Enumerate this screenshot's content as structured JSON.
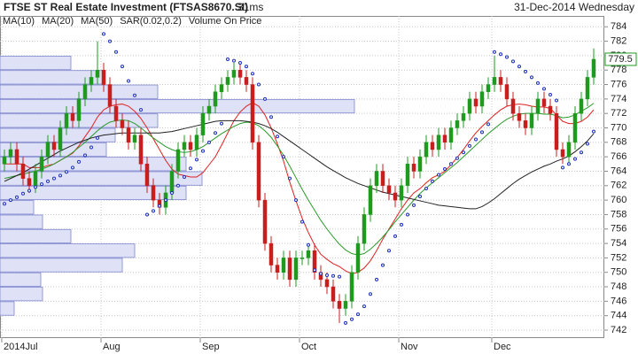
{
  "chart_data": {
    "type": "candlestick",
    "title": "FTSE ST Real Estate Investment (FTSAS8670.SI)",
    "interval": "31ms",
    "date_label": "31-Dec-2014 Wednesday",
    "up_color": "#1f9a1f",
    "down_color": "#c81e1e",
    "grid": true,
    "categories": [
      "2014Jul",
      null,
      null,
      null,
      null,
      null,
      null,
      null,
      null,
      null,
      null,
      null,
      null,
      null,
      null,
      null,
      "Aug",
      null,
      null,
      null,
      null,
      null,
      null,
      null,
      null,
      null,
      null,
      null,
      null,
      null,
      null,
      null,
      "Sep",
      null,
      null,
      null,
      null,
      null,
      null,
      null,
      null,
      null,
      null,
      null,
      null,
      null,
      null,
      null,
      "Oct",
      null,
      null,
      null,
      null,
      null,
      null,
      null,
      null,
      null,
      null,
      null,
      null,
      null,
      null,
      null,
      "Nov",
      null,
      null,
      null,
      null,
      null,
      null,
      null,
      null,
      null,
      null,
      null,
      null,
      null,
      null,
      "Dec",
      null,
      null,
      null,
      null,
      null,
      null,
      null,
      null,
      null,
      null,
      null,
      null,
      null,
      null,
      null,
      null
    ],
    "open": [
      765,
      766,
      767,
      765,
      763,
      762,
      764,
      766,
      768,
      767,
      770,
      772,
      771,
      774,
      776,
      777,
      778,
      776,
      773,
      771,
      770,
      768,
      769,
      765,
      762,
      760,
      759,
      761,
      764,
      767,
      768,
      767,
      769,
      772,
      773,
      775,
      776,
      777,
      778,
      777,
      776,
      768,
      760,
      754,
      751,
      750,
      752,
      749,
      752,
      752,
      753,
      750,
      749,
      748,
      746,
      745,
      746,
      750,
      754,
      758,
      762,
      764,
      762,
      761,
      760,
      762,
      765,
      764,
      766,
      768,
      767,
      769,
      768,
      770,
      771,
      772,
      774,
      773,
      775,
      776,
      777,
      776,
      774,
      772,
      771,
      770,
      772,
      774,
      773,
      772,
      767,
      766,
      768,
      772,
      774,
      777
    ],
    "high": [
      767,
      768,
      768,
      766,
      764,
      765,
      767,
      769,
      769,
      771,
      773,
      773,
      775,
      777,
      778,
      782,
      779,
      777,
      774,
      772,
      771,
      770,
      770,
      766,
      763,
      761,
      762,
      765,
      768,
      769,
      769,
      770,
      773,
      774,
      776,
      777,
      778,
      779,
      779,
      778,
      777,
      769,
      761,
      755,
      752,
      753,
      753,
      753,
      753,
      754,
      754,
      751,
      750,
      749,
      747,
      747,
      751,
      755,
      759,
      763,
      765,
      765,
      763,
      762,
      763,
      766,
      766,
      767,
      769,
      769,
      770,
      770,
      771,
      772,
      773,
      775,
      775,
      776,
      777,
      780,
      778,
      777,
      775,
      773,
      772,
      773,
      775,
      775,
      774,
      773,
      768,
      769,
      773,
      775,
      778,
      781
    ],
    "low": [
      764,
      765,
      764,
      762,
      761,
      761,
      763,
      765,
      766,
      766,
      769,
      770,
      770,
      773,
      775,
      776,
      775,
      772,
      770,
      769,
      767,
      767,
      764,
      761,
      759,
      758,
      758,
      760,
      763,
      766,
      766,
      766,
      768,
      771,
      772,
      774,
      775,
      776,
      776,
      775,
      767,
      759,
      753,
      750,
      749,
      749,
      748,
      748,
      751,
      751,
      749,
      748,
      747,
      745,
      743,
      744,
      745,
      749,
      753,
      757,
      761,
      761,
      760,
      759,
      759,
      761,
      763,
      763,
      765,
      766,
      766,
      767,
      767,
      769,
      770,
      771,
      772,
      772,
      774,
      775,
      775,
      773,
      771,
      770,
      769,
      769,
      771,
      772,
      771,
      766,
      765,
      765,
      767,
      771,
      773,
      776
    ],
    "close": [
      766,
      767,
      765,
      763,
      762,
      764,
      766,
      768,
      767,
      770,
      772,
      771,
      774,
      776,
      777,
      778,
      776,
      773,
      771,
      770,
      768,
      769,
      765,
      762,
      760,
      759,
      761,
      764,
      767,
      768,
      767,
      769,
      772,
      773,
      775,
      776,
      777,
      778,
      777,
      776,
      768,
      760,
      754,
      751,
      750,
      752,
      749,
      752,
      752,
      753,
      750,
      749,
      748,
      746,
      745,
      746,
      750,
      754,
      758,
      762,
      764,
      762,
      761,
      760,
      762,
      765,
      764,
      766,
      768,
      767,
      769,
      768,
      770,
      771,
      772,
      774,
      773,
      775,
      776,
      777,
      776,
      774,
      772,
      771,
      770,
      772,
      774,
      773,
      772,
      767,
      766,
      768,
      772,
      774,
      777,
      779.5
    ],
    "series": [
      {
        "name": "MA(10)",
        "color": "#e02020",
        "values": [
          765,
          765,
          765,
          765,
          764.5,
          764.5,
          764.5,
          764.8,
          765,
          765.5,
          766,
          766.5,
          767.5,
          768.8,
          770,
          771.5,
          772.5,
          773,
          773.2,
          773.3,
          773,
          772.3,
          771.3,
          770,
          768.5,
          767,
          765.5,
          764.3,
          763.6,
          763.4,
          763.2,
          763.2,
          763.8,
          764.9,
          766,
          767.6,
          769.3,
          771,
          772.2,
          773,
          773.5,
          773,
          771.8,
          770,
          767.8,
          765.4,
          762.5,
          759.9,
          757.5,
          755.5,
          753.8,
          752.5,
          751.8,
          751.2,
          750.8,
          750.2,
          749.8,
          750,
          750.6,
          751.6,
          753,
          754.6,
          756,
          757.4,
          758.8,
          760,
          761,
          761.6,
          762.4,
          763.1,
          763.5,
          764,
          764.9,
          765.9,
          767,
          768.2,
          769.3,
          770.2,
          771,
          771.8,
          772.5,
          773,
          773.2,
          773.3,
          773.2,
          773,
          772.9,
          772.9,
          772.7,
          771.8,
          770.9,
          770.6,
          770.6,
          770.9,
          771.5,
          772.5
        ]
      },
      {
        "name": "MA(20)",
        "color": "#2a9a2a",
        "values": [
          763,
          763.2,
          763.4,
          763.6,
          763.8,
          764,
          764.3,
          764.6,
          765,
          765.5,
          766,
          766.6,
          767.3,
          768,
          768.8,
          769.6,
          770.3,
          770.8,
          771,
          771.1,
          771,
          770.6,
          770,
          769.3,
          768.6,
          768,
          767.4,
          767,
          766.7,
          766.6,
          766.7,
          767,
          767.4,
          768,
          768.6,
          769.2,
          769.7,
          770.2,
          770.6,
          770.8,
          770.7,
          770.3,
          769.6,
          768.7,
          767.5,
          766.2,
          764.7,
          763.1,
          761.5,
          760,
          758.6,
          757.2,
          756,
          754.9,
          753.9,
          753.1,
          752.6,
          752.4,
          752.6,
          753.2,
          754,
          754.9,
          755.9,
          757,
          758,
          759,
          760,
          760.9,
          761.7,
          762.4,
          763.1,
          763.8,
          764.5,
          765.2,
          766,
          766.8,
          767.6,
          768.4,
          769.2,
          769.9,
          770.6,
          771.2,
          771.6,
          771.9,
          772,
          772,
          772,
          771.9,
          771.9,
          771.7,
          771.4,
          771.5,
          771.8,
          772.3,
          772.8,
          773.4
        ]
      },
      {
        "name": "MA(50)",
        "color": "#222222",
        "values": [
          762.6,
          763,
          763.4,
          763.8,
          764.3,
          764.8,
          765.3,
          765.8,
          766.3,
          766.8,
          767.2,
          767.6,
          768,
          768.3,
          768.6,
          768.8,
          769,
          769.1,
          769.2,
          769.3,
          769.3,
          769.3,
          769.3,
          769.3,
          769.3,
          769.3,
          769.4,
          769.5,
          769.7,
          769.9,
          770.1,
          770.3,
          770.5,
          770.7,
          770.9,
          771,
          771,
          771,
          771,
          770.9,
          770.8,
          770.6,
          770.3,
          769.9,
          769.4,
          768.8,
          768.2,
          767.6,
          767,
          766.4,
          765.8,
          765.2,
          764.6,
          764.1,
          763.6,
          763.1,
          762.7,
          762.3,
          762,
          761.7,
          761.4,
          761.1,
          760.9,
          760.7,
          760.5,
          760.3,
          760.1,
          759.9,
          759.7,
          759.5,
          759.3,
          759.2,
          759.1,
          759,
          758.9,
          758.8,
          758.8,
          759.1,
          759.6,
          760.2,
          760.9,
          761.6,
          762.3,
          762.9,
          763.4,
          763.9,
          764.3,
          764.7,
          765,
          765.4,
          765.7,
          766.1,
          766.7,
          767.4,
          768.2,
          769.2
        ]
      }
    ],
    "sar": {
      "name": "SAR(0.02,0.2)",
      "color": "#1c2fb8",
      "values": [
        759.5,
        760,
        760.4,
        760.9,
        761.3,
        761.8,
        762.2,
        762.6,
        763,
        763.4,
        763.9,
        764.5,
        765.3,
        766.2,
        767.3,
        768.6,
        783,
        782,
        780.5,
        778.5,
        776.5,
        774.5,
        772.5,
        758,
        758.5,
        759.2,
        760,
        761,
        762,
        763.2,
        764.4,
        765.6,
        766.8,
        768,
        769.3,
        770.6,
        779.5,
        779.3,
        779,
        778.5,
        777.5,
        776,
        774,
        771.5,
        768.8,
        766,
        763,
        760,
        757,
        753.8,
        750.3,
        749.8,
        749.6,
        749.5,
        749.4,
        743,
        743.5,
        744.2,
        745.3,
        747,
        749,
        751,
        753,
        755,
        756.6,
        758,
        759.3,
        760.5,
        761.6,
        762.6,
        763.5,
        764.3,
        765,
        765.8,
        766.6,
        767.5,
        768.4,
        769.4,
        770.5,
        780.5,
        780.2,
        779.8,
        779.2,
        778.5,
        777.8,
        777,
        776.2,
        775.4,
        774.6,
        773.8,
        764.5,
        765,
        765.7,
        766.6,
        767.8,
        769.5
      ]
    },
    "volume_on_price": {
      "name": "Volume On Price",
      "color": "#dfe1f7",
      "bins": [
        744,
        746,
        748,
        750,
        752,
        754,
        756,
        758,
        760,
        762,
        764,
        766,
        768,
        770,
        772,
        774,
        776,
        778,
        780
      ],
      "values": [
        16,
        48,
        46,
        138,
        152,
        80,
        48,
        38,
        210,
        228,
        210,
        120,
        130,
        178,
        400,
        178,
        118,
        80
      ]
    },
    "ylim": [
      740.9,
      785.5
    ],
    "yticks": [
      742,
      744,
      746,
      748,
      750,
      752,
      754,
      756,
      758,
      760,
      762,
      764,
      766,
      768,
      770,
      772,
      774,
      776,
      778,
      780,
      782,
      784
    ]
  }
}
